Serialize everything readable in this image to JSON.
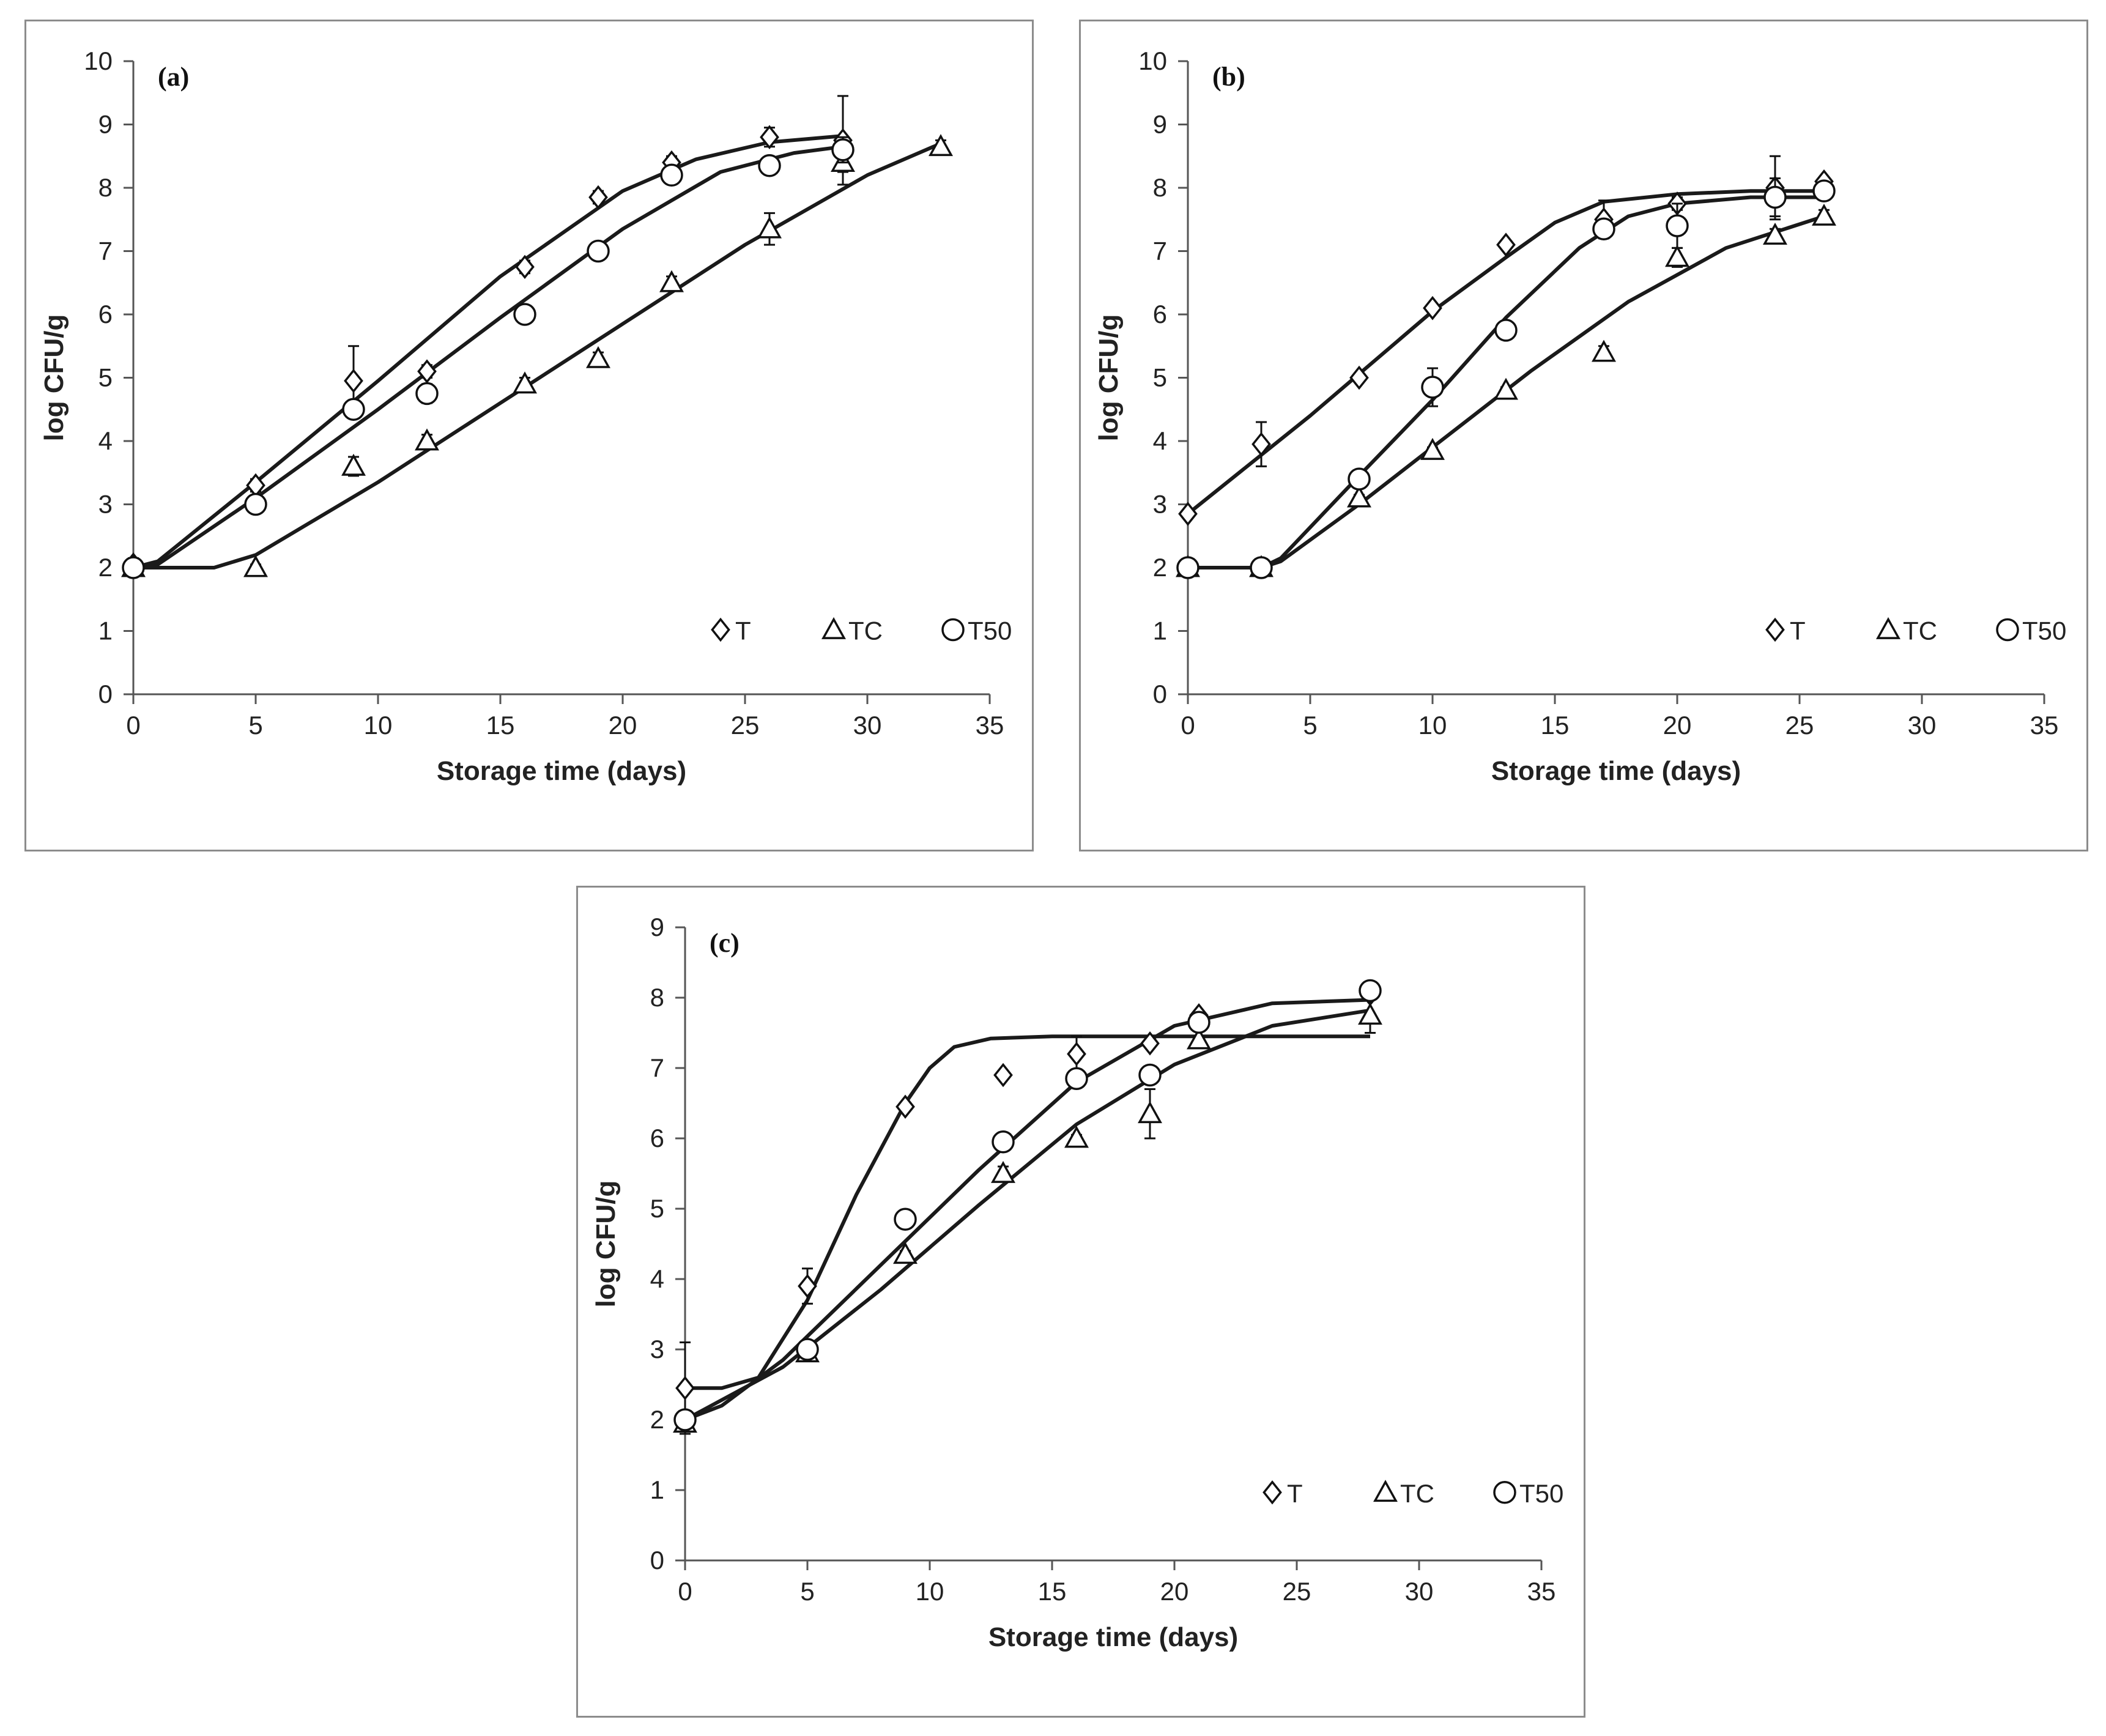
{
  "chart_data": [
    {
      "type": "scatter",
      "panel_label": "(a)",
      "xlabel": "Storage time (days)",
      "ylabel": "log CFU/g",
      "xlim": [
        0,
        35
      ],
      "ylim": [
        0,
        10
      ],
      "xticks": [
        0,
        5,
        10,
        15,
        20,
        25,
        30,
        35
      ],
      "yticks": [
        0,
        1,
        2,
        3,
        4,
        5,
        6,
        7,
        8,
        9,
        10
      ],
      "grid": false,
      "legend_position": "bottom-right",
      "series": [
        {
          "name": "T",
          "marker": "diamond",
          "points": [
            [
              0,
              2.05
            ],
            [
              5,
              3.3
            ],
            [
              9,
              4.95
            ],
            [
              12,
              5.1
            ],
            [
              16,
              6.75
            ],
            [
              19,
              7.85
            ],
            [
              22,
              8.4
            ],
            [
              26,
              8.8
            ],
            [
              29,
              8.75
            ]
          ],
          "errors": [
            0.1,
            0.1,
            0.55,
            0.1,
            0.1,
            0.1,
            0.1,
            0.15,
            0.7
          ],
          "curve": [
            [
              0,
              2.0
            ],
            [
              1,
              2.1
            ],
            [
              5,
              3.35
            ],
            [
              10,
              4.95
            ],
            [
              15,
              6.6
            ],
            [
              20,
              7.95
            ],
            [
              23,
              8.45
            ],
            [
              26,
              8.72
            ],
            [
              29,
              8.82
            ]
          ]
        },
        {
          "name": "TC",
          "marker": "triangle",
          "points": [
            [
              0,
              2.0
            ],
            [
              5,
              2.0
            ],
            [
              9,
              3.6
            ],
            [
              12,
              4.0
            ],
            [
              16,
              4.9
            ],
            [
              19,
              5.3
            ],
            [
              22,
              6.5
            ],
            [
              26,
              7.35
            ],
            [
              29,
              8.4
            ],
            [
              33,
              8.65
            ]
          ],
          "errors": [
            0.1,
            0.05,
            0.15,
            0.1,
            0.1,
            0.1,
            0.1,
            0.25,
            0.15,
            0.1
          ],
          "curve": [
            [
              0,
              2.0
            ],
            [
              3.3,
              2.0
            ],
            [
              5,
              2.2
            ],
            [
              10,
              3.35
            ],
            [
              15,
              4.6
            ],
            [
              20,
              5.85
            ],
            [
              25,
              7.1
            ],
            [
              30,
              8.2
            ],
            [
              33,
              8.7
            ]
          ]
        },
        {
          "name": "T50",
          "marker": "circle",
          "points": [
            [
              0,
              2.0
            ],
            [
              5,
              3.0
            ],
            [
              9,
              4.5
            ],
            [
              12,
              4.75
            ],
            [
              16,
              6.0
            ],
            [
              19,
              7.0
            ],
            [
              22,
              8.2
            ],
            [
              26,
              8.35
            ],
            [
              29,
              8.6
            ]
          ],
          "errors": [
            0.1,
            0.1,
            0.1,
            0.15,
            0.05,
            0.1,
            0.1,
            0.1,
            0.2
          ],
          "curve": [
            [
              0,
              2.0
            ],
            [
              1,
              2.05
            ],
            [
              5,
              3.1
            ],
            [
              10,
              4.5
            ],
            [
              15,
              5.95
            ],
            [
              20,
              7.35
            ],
            [
              24,
              8.25
            ],
            [
              27,
              8.55
            ],
            [
              29,
              8.65
            ]
          ]
        }
      ]
    },
    {
      "type": "scatter",
      "panel_label": "(b)",
      "xlabel": "Storage time (days)",
      "ylabel": "log CFU/g",
      "xlim": [
        0,
        35
      ],
      "ylim": [
        0,
        10
      ],
      "xticks": [
        0,
        5,
        10,
        15,
        20,
        25,
        30,
        35
      ],
      "yticks": [
        0,
        1,
        2,
        3,
        4,
        5,
        6,
        7,
        8,
        9,
        10
      ],
      "grid": false,
      "legend_position": "bottom-right",
      "series": [
        {
          "name": "T",
          "marker": "diamond",
          "points": [
            [
              0,
              2.85
            ],
            [
              3,
              3.95
            ],
            [
              7,
              5.0
            ],
            [
              10,
              6.1
            ],
            [
              13,
              7.1
            ],
            [
              17,
              7.5
            ],
            [
              20,
              7.75
            ],
            [
              24,
              8.0
            ],
            [
              26,
              8.1
            ]
          ],
          "errors": [
            0.05,
            0.35,
            0.05,
            0.05,
            0.05,
            0.3,
            0.1,
            0.5,
            0.05
          ],
          "curve": [
            [
              0,
              2.85
            ],
            [
              5,
              4.4
            ],
            [
              10,
              6.05
            ],
            [
              13,
              6.9
            ],
            [
              15,
              7.45
            ],
            [
              17,
              7.78
            ],
            [
              20,
              7.9
            ],
            [
              23,
              7.95
            ],
            [
              26,
              7.95
            ]
          ]
        },
        {
          "name": "TC",
          "marker": "triangle",
          "points": [
            [
              0,
              2.0
            ],
            [
              3,
              2.0
            ],
            [
              7,
              3.1
            ],
            [
              10,
              3.85
            ],
            [
              13,
              4.8
            ],
            [
              17,
              5.4
            ],
            [
              20,
              6.9
            ],
            [
              24,
              7.25
            ],
            [
              26,
              7.55
            ]
          ],
          "errors": [
            0.05,
            0.05,
            0.05,
            0.05,
            0.05,
            0.1,
            0.15,
            0.1,
            0.1
          ],
          "curve": [
            [
              0,
              2.0
            ],
            [
              3,
              2.0
            ],
            [
              3.8,
              2.1
            ],
            [
              7,
              3.0
            ],
            [
              10,
              3.9
            ],
            [
              14,
              5.1
            ],
            [
              18,
              6.2
            ],
            [
              22,
              7.05
            ],
            [
              26,
              7.55
            ]
          ]
        },
        {
          "name": "T50",
          "marker": "circle",
          "points": [
            [
              0,
              2.0
            ],
            [
              3,
              2.0
            ],
            [
              7,
              3.4
            ],
            [
              10,
              4.85
            ],
            [
              13,
              5.75
            ],
            [
              17,
              7.35
            ],
            [
              20,
              7.4
            ],
            [
              24,
              7.85
            ],
            [
              26,
              7.95
            ]
          ],
          "errors": [
            0.05,
            0.05,
            0.05,
            0.3,
            0.05,
            0.1,
            0.35,
            0.3,
            0.05
          ],
          "curve": [
            [
              0,
              2.0
            ],
            [
              3,
              2.0
            ],
            [
              3.8,
              2.15
            ],
            [
              7,
              3.45
            ],
            [
              10,
              4.65
            ],
            [
              13,
              5.95
            ],
            [
              16,
              7.05
            ],
            [
              18,
              7.55
            ],
            [
              20,
              7.75
            ],
            [
              23,
              7.85
            ],
            [
              26,
              7.85
            ]
          ]
        }
      ]
    },
    {
      "type": "scatter",
      "panel_label": "(c)",
      "xlabel": "Storage time (days)",
      "ylabel": "log CFU/g",
      "xlim": [
        0,
        35
      ],
      "ylim": [
        0,
        9
      ],
      "xticks": [
        0,
        5,
        10,
        15,
        20,
        25,
        30,
        35
      ],
      "yticks": [
        0,
        1,
        2,
        3,
        4,
        5,
        6,
        7,
        8,
        9
      ],
      "grid": false,
      "legend_position": "bottom-right",
      "series": [
        {
          "name": "T",
          "marker": "diamond",
          "points": [
            [
              0,
              2.45
            ],
            [
              5,
              3.9
            ],
            [
              9,
              6.45
            ],
            [
              13,
              6.9
            ],
            [
              16,
              7.2
            ],
            [
              19,
              7.35
            ],
            [
              21,
              7.75
            ],
            [
              28,
              8.05
            ]
          ],
          "errors": [
            0.65,
            0.25,
            0.05,
            0.05,
            0.25,
            0.05,
            0.05,
            0.05
          ],
          "curve": [
            [
              0,
              2.45
            ],
            [
              1.5,
              2.45
            ],
            [
              3,
              2.6
            ],
            [
              5,
              3.7
            ],
            [
              7,
              5.2
            ],
            [
              9,
              6.5
            ],
            [
              10,
              7.0
            ],
            [
              11,
              7.3
            ],
            [
              12.5,
              7.42
            ],
            [
              15,
              7.45
            ],
            [
              28,
              7.45
            ]
          ]
        },
        {
          "name": "TC",
          "marker": "triangle",
          "points": [
            [
              0,
              1.95
            ],
            [
              5,
              2.95
            ],
            [
              9,
              4.35
            ],
            [
              13,
              5.5
            ],
            [
              16,
              6.0
            ],
            [
              19,
              6.35
            ],
            [
              21,
              7.4
            ],
            [
              28,
              7.75
            ]
          ],
          "errors": [
            0.1,
            0.05,
            0.05,
            0.1,
            0.05,
            0.35,
            0.05,
            0.25
          ],
          "curve": [
            [
              0,
              2.0
            ],
            [
              4,
              2.75
            ],
            [
              8,
              3.85
            ],
            [
              12,
              5.05
            ],
            [
              16,
              6.2
            ],
            [
              20,
              7.05
            ],
            [
              24,
              7.6
            ],
            [
              28,
              7.82
            ]
          ]
        },
        {
          "name": "T50",
          "marker": "circle",
          "points": [
            [
              0,
              2.0
            ],
            [
              5,
              3.0
            ],
            [
              9,
              4.85
            ],
            [
              13,
              5.95
            ],
            [
              16,
              6.85
            ],
            [
              19,
              6.9
            ],
            [
              21,
              7.65
            ],
            [
              28,
              8.1
            ]
          ],
          "errors": [
            0.1,
            0.05,
            0.1,
            0.05,
            0.05,
            0.05,
            0.05,
            0.05
          ],
          "curve": [
            [
              0,
              2.0
            ],
            [
              1.5,
              2.2
            ],
            [
              4,
              2.85
            ],
            [
              8,
              4.2
            ],
            [
              12,
              5.55
            ],
            [
              16,
              6.8
            ],
            [
              20,
              7.6
            ],
            [
              24,
              7.92
            ],
            [
              28,
              7.97
            ]
          ]
        }
      ]
    }
  ]
}
